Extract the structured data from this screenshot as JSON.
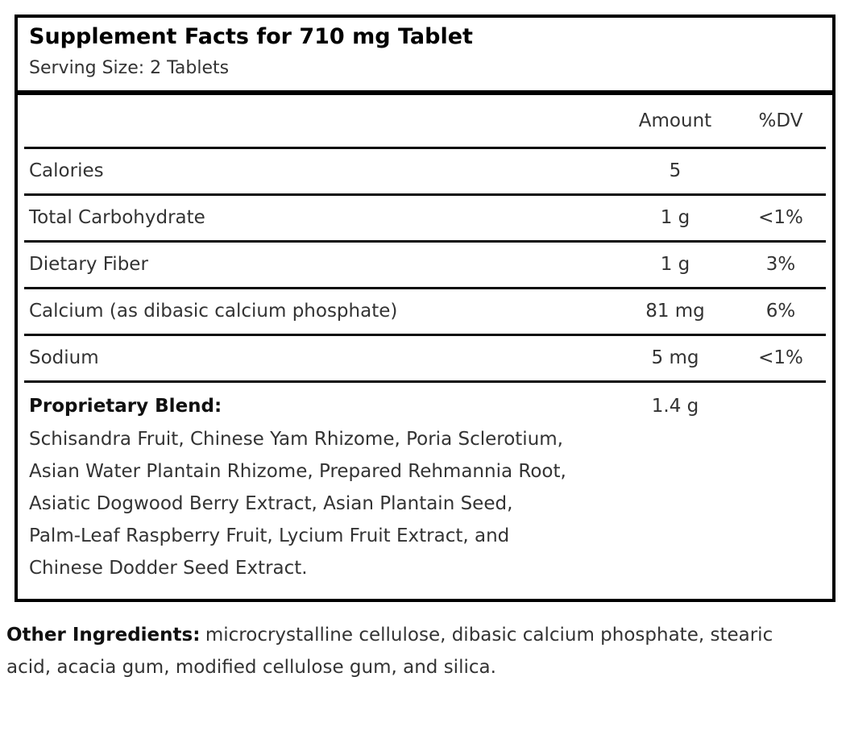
{
  "panel": {
    "title": "Supplement Facts for 710 mg Tablet",
    "serving_size": "Serving Size: 2 Tablets"
  },
  "table": {
    "columns": {
      "amount": "Amount",
      "dv": "%DV"
    },
    "rows": [
      {
        "label": "Calories",
        "amount": "5",
        "dv": ""
      },
      {
        "label": "Total Carbohydrate",
        "amount": "1 g",
        "dv": "<1%"
      },
      {
        "label": "Dietary Fiber",
        "amount": "1 g",
        "dv": "3%"
      },
      {
        "label": "Calcium (as dibasic calcium phosphate)",
        "amount": "81 mg",
        "dv": "6%"
      },
      {
        "label": "Sodium",
        "amount": "5 mg",
        "dv": "<1%"
      }
    ],
    "proprietary_blend": {
      "label": "Proprietary Blend:",
      "amount": "1.4 g",
      "description_lines": [
        "Schisandra Fruit, Chinese Yam Rhizome, Poria Sclerotium,",
        "Asian Water Plantain Rhizome, Prepared Rehmannia Root,",
        "Asiatic Dogwood Berry Extract, Asian Plantain Seed,",
        "Palm-Leaf Raspberry Fruit, Lycium Fruit Extract, and",
        "Chinese Dodder Seed Extract."
      ]
    }
  },
  "footer": {
    "other_ingredients_label": "Other Ingredients:",
    "other_ingredients_text": "microcrystalline cellulose, dibasic calcium phosphate, stearic acid, acacia gum, modified cellulose gum, and silica."
  },
  "colors": {
    "border": "#000000",
    "body_text": "#333333",
    "heading_text": "#000000",
    "background": "#ffffff"
  }
}
